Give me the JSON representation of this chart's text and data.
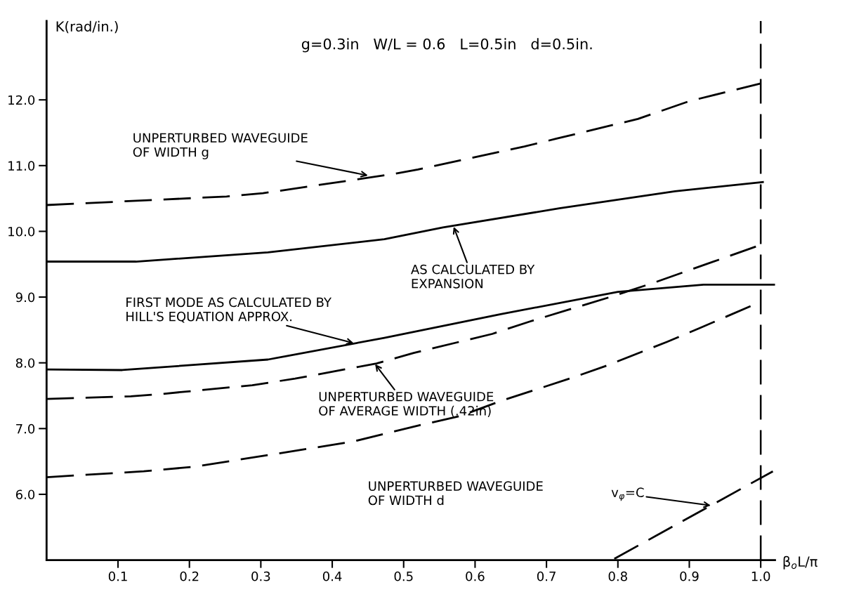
{
  "chart_data": {
    "type": "line",
    "xlabel": "β$_{o}$L/π",
    "ylabel": "K(rad/in.)",
    "xlim": [
      0,
      1.02
    ],
    "ylim": [
      5.0,
      13.2
    ],
    "xticks": [
      0.1,
      0.2,
      0.3,
      0.4,
      0.5,
      0.6,
      0.7,
      0.8,
      0.9,
      {
        "value": 1.0,
        "label": "1.0"
      }
    ],
    "yticks": [
      {
        "value": 6,
        "label": "6.0"
      },
      {
        "value": 7,
        "label": "7.0"
      },
      {
        "value": 8,
        "label": "8.0"
      },
      {
        "value": 9,
        "label": "9.0"
      },
      {
        "value": 10,
        "label": "10.0"
      },
      {
        "value": 11,
        "label": "11.0"
      },
      {
        "value": 12,
        "label": "12.0"
      }
    ],
    "grid": false,
    "legend": false,
    "marker": "none",
    "series": [
      {
        "color": "#000000",
        "line_style": "dashed",
        "x": [
          0,
          0.252,
          0.303,
          0.484,
          0.52,
          0.669,
          0.714,
          0.828,
          0.9,
          1.0
        ],
        "values": [
          10.4,
          10.53,
          10.58,
          10.87,
          10.94,
          11.29,
          11.41,
          11.71,
          11.98,
          12.25
        ]
      },
      {
        "color": "#000000",
        "line_style": "solid",
        "x": [
          0,
          0.125,
          0.31,
          0.473,
          0.555,
          0.718,
          0.88,
          1.003
        ],
        "values": [
          9.54,
          9.54,
          9.68,
          9.88,
          10.06,
          10.35,
          10.61,
          10.75
        ]
      },
      {
        "color": "#000000",
        "line_style": "solid",
        "x": [
          0,
          0.106,
          0.31,
          0.473,
          0.636,
          0.8,
          0.92,
          1.02
        ],
        "values": [
          7.9,
          7.89,
          8.05,
          8.38,
          8.74,
          9.08,
          9.19,
          9.19
        ]
      },
      {
        "color": "#000000",
        "line_style": "dashed",
        "x": [
          0,
          0.118,
          0.155,
          0.288,
          0.348,
          0.462,
          0.514,
          0.624,
          0.677,
          0.789,
          0.848,
          0.999
        ],
        "values": [
          7.45,
          7.49,
          7.52,
          7.66,
          7.76,
          7.99,
          8.15,
          8.44,
          8.63,
          9.0,
          9.21,
          9.79
        ]
      },
      {
        "color": "#000000",
        "line_style": "dashed",
        "x": [
          0,
          0.136,
          0.207,
          0.353,
          0.428,
          0.522,
          0.579,
          0.636,
          0.738,
          0.785,
          0.869,
          0.915,
          1.0
        ],
        "values": [
          6.26,
          6.35,
          6.42,
          6.67,
          6.8,
          7.05,
          7.19,
          7.42,
          7.78,
          7.96,
          8.32,
          8.53,
          8.93
        ]
      },
      {
        "color": "#000000",
        "line_style": "dashed",
        "x": [
          0.795,
          1.017
        ],
        "values": [
          5.02,
          6.35
        ]
      }
    ],
    "ref_lines": [
      {
        "axis": "x",
        "value": 1.0,
        "color": "#000000",
        "line_style": "dashed"
      }
    ],
    "annotations": [
      "g=0.3in   W/L = 0.6   L=0.5in   d=0.5in.",
      {
        "text": "UNPERTURBED WAVEGUIDE\nOF WIDTH g",
        "x": 0.45,
        "y": 10.85
      },
      {
        "text": "AS CALCULATED BY\nEXPANSION",
        "x": 0.57,
        "y": 10.07
      },
      {
        "text": "FIRST MODE AS CALCULATED BY\nHILL'S EQUATION APPROX.",
        "x": 0.43,
        "y": 8.3
      },
      {
        "text": "UNPERTURBED WAVEGUIDE\nOF AVERAGE WIDTH (.42in)",
        "x": 0.46,
        "y": 7.98
      },
      "UNPERTURBED WAVEGUIDE\nOF WIDTH d",
      {
        "text": "v$_{φ}$=C",
        "x": 0.93,
        "y": 5.83
      }
    ]
  }
}
